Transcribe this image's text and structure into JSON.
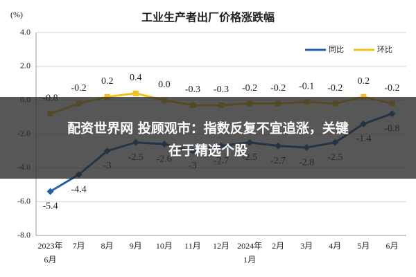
{
  "chart_data": {
    "type": "line",
    "title": "工业生产者出厂价格涨跌幅",
    "y_unit": "(%)",
    "categories": [
      "2023年\n6月",
      "7月",
      "8月",
      "9月",
      "10月",
      "11月",
      "12月",
      "2024年\n1月",
      "2月",
      "3月",
      "4月",
      "5月",
      "6月"
    ],
    "series": [
      {
        "name": "同比",
        "color": "#1f5fa8",
        "values": [
          -5.4,
          -4.4,
          -3.0,
          -2.5,
          -2.6,
          -3.0,
          -2.7,
          -2.5,
          -2.7,
          -2.8,
          -2.5,
          -1.4,
          -0.8
        ]
      },
      {
        "name": "环比",
        "color": "#f2c01e",
        "values": [
          -0.8,
          -0.2,
          0.2,
          0.4,
          0,
          -0.3,
          -0.3,
          -0.2,
          -0.2,
          -0.1,
          -0.2,
          0.2,
          -0.2
        ],
        "value_labels": [
          "-0.8",
          "-0.2",
          "0.2",
          "0.4",
          "0.0",
          "-0.3",
          "-0.3",
          "-0.2",
          "-0.2",
          "-0.1",
          "-0.2",
          "0.2",
          "-0.2"
        ]
      }
    ],
    "ylim": [
      -8,
      4
    ],
    "yticks": [
      {
        "value": 4,
        "label": "4.0"
      },
      {
        "value": 2,
        "label": "2.0"
      },
      {
        "value": 0,
        "label": "0.0"
      },
      {
        "value": -2,
        "label": "-2.0"
      },
      {
        "value": -4,
        "label": "-4.0"
      },
      {
        "value": -6,
        "label": "-6.0"
      },
      {
        "value": -8,
        "label": "-8.0"
      }
    ],
    "grid": true,
    "legend": "top-right"
  },
  "banner": {
    "lines": [
      "配资世界网 投顾观市：指数反复不宜追涨，关键",
      "在于精选个股"
    ]
  }
}
